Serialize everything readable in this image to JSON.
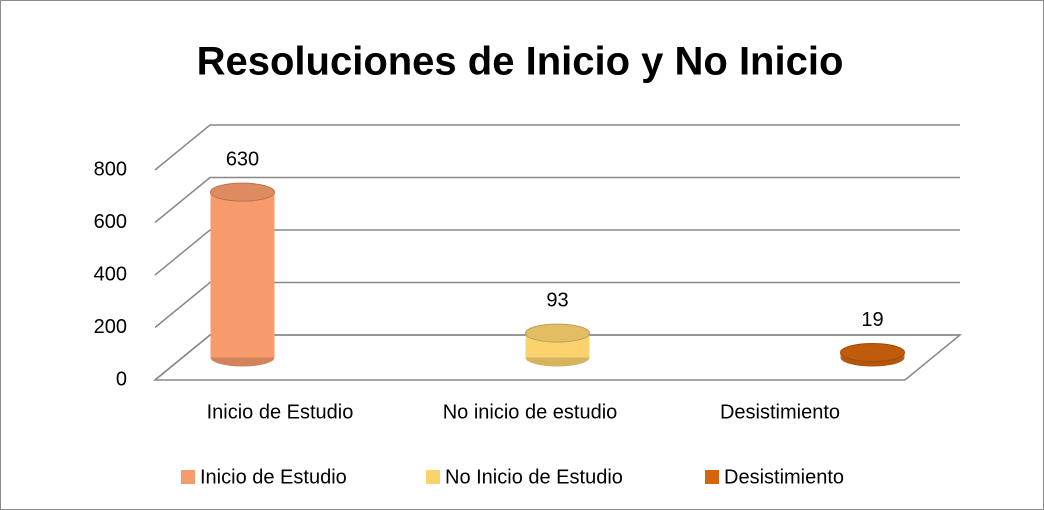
{
  "chart_data": {
    "type": "bar3d",
    "title": "Resoluciones de Inicio y No Inicio",
    "categories": [
      "Inicio de Estudio",
      "No inicio de estudio",
      "Desistimiento"
    ],
    "series": [
      {
        "name": "Inicio de Estudio",
        "color": "#f79a6c",
        "values": [
          630,
          null,
          null
        ]
      },
      {
        "name": "No Inicio de Estudio",
        "color": "#fcd26e",
        "values": [
          null,
          93,
          null
        ]
      },
      {
        "name": "Desistimiento",
        "color": "#d4650c",
        "values": [
          null,
          null,
          19
        ]
      }
    ],
    "ylim": [
      0,
      800
    ],
    "yticks": [
      0,
      200,
      400,
      600,
      800
    ],
    "grid": true,
    "legend": "bottom"
  }
}
